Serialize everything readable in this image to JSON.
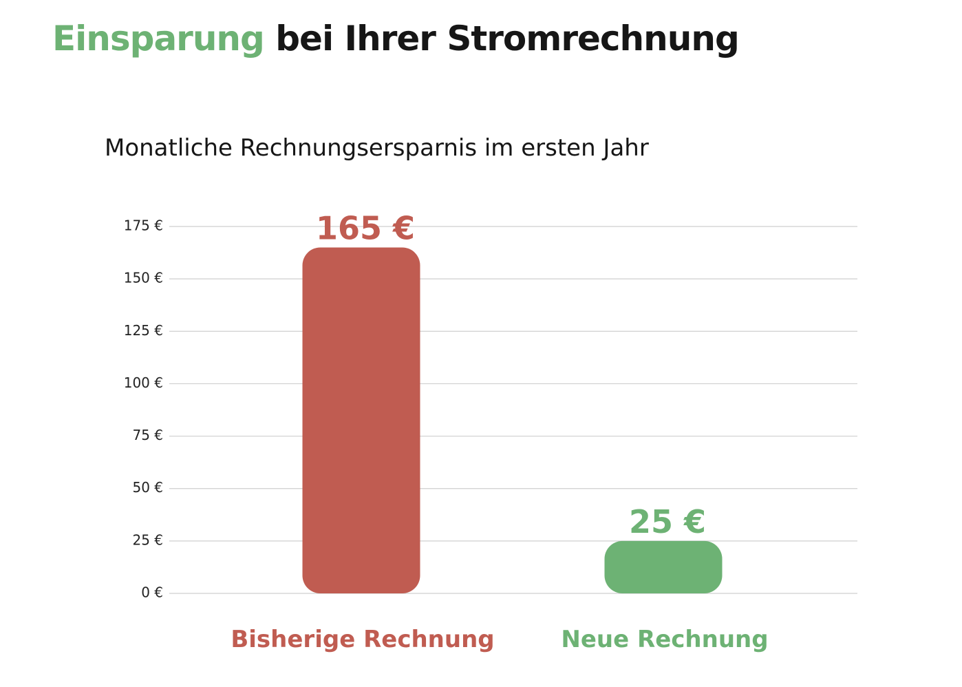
{
  "header": {
    "title_accent": "Einsparung",
    "title_rest": "bei Ihrer Stromrechnung",
    "accent_color": "#6db274",
    "text_color": "#161616"
  },
  "chart_data": {
    "type": "bar",
    "title": "Monatliche Rechnungsersparnis im ersten Jahr",
    "categories": [
      "Bisherige Rechnung",
      "Neue Rechnung"
    ],
    "values": [
      165,
      25
    ],
    "value_labels": [
      "165 €",
      "25 €"
    ],
    "colors": [
      "#c05c51",
      "#6db274"
    ],
    "label_colors": [
      "#c05c51",
      "#6db274"
    ],
    "xlabel": "",
    "ylabel": "",
    "ylim": [
      0,
      175
    ],
    "yticks": [
      0,
      25,
      50,
      75,
      100,
      125,
      150,
      175
    ],
    "ytick_labels": [
      "0 €",
      "25 €",
      "50 €",
      "75 €",
      "100 €",
      "125 €",
      "150 €",
      "175 €"
    ],
    "grid": true,
    "legend": "none"
  }
}
